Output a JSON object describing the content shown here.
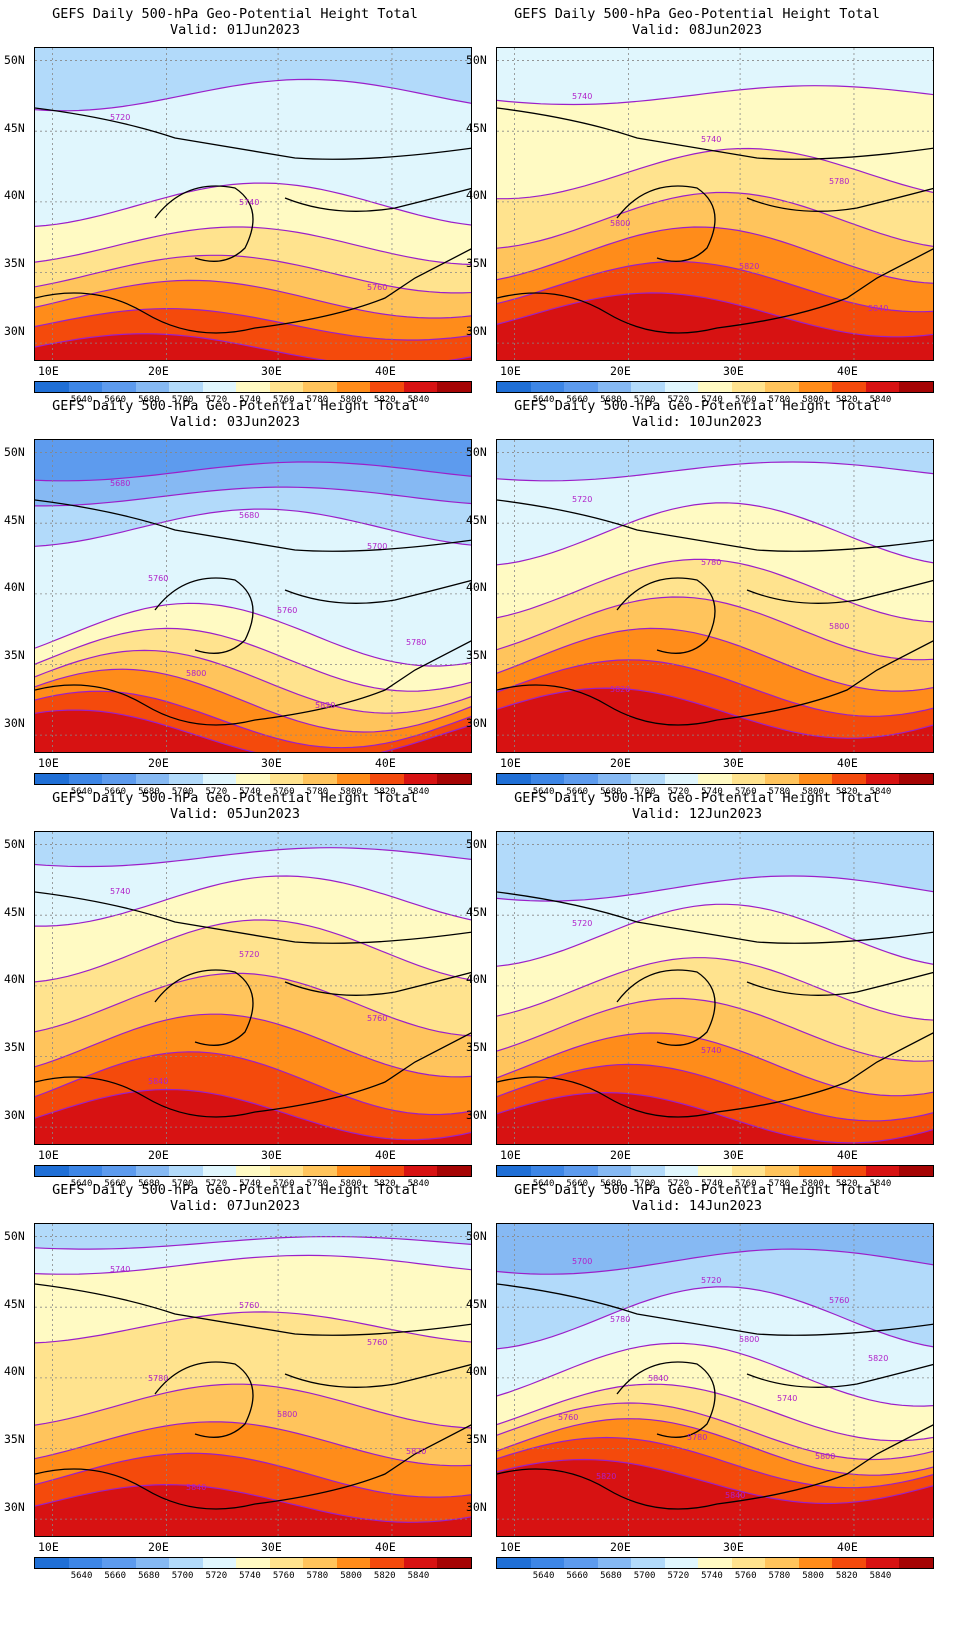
{
  "colorbar": {
    "labels": [
      "5640",
      "5660",
      "5680",
      "5700",
      "5720",
      "5740",
      "5760",
      "5780",
      "5800",
      "5820",
      "5840"
    ],
    "colors": [
      "#1f6fd6",
      "#3d86e6",
      "#5d9bee",
      "#86b9f3",
      "#b2dafa",
      "#e0f6fd",
      "#fffac3",
      "#ffe38e",
      "#ffc45c",
      "#ff8c1a",
      "#f44a0c",
      "#d71212",
      "#a50404"
    ]
  },
  "axes": {
    "lat_labels": [
      "50N",
      "45N",
      "40N",
      "35N",
      "30N"
    ],
    "lon_labels": [
      "10E",
      "20E",
      "30E",
      "40E"
    ]
  },
  "panels": [
    {
      "title": "GEFS Daily 500-hPa Geo-Potential Height Total",
      "valid": "Valid: 01Jun2023",
      "base": 4,
      "bands": [
        {
          "color": 5,
          "base": 0.15,
          "amp": 0.05,
          "phase": 0.4
        },
        {
          "color": 6,
          "base": 0.5,
          "amp": 0.07,
          "phase": 0.6
        },
        {
          "color": 7,
          "base": 0.63,
          "amp": 0.06,
          "phase": 0.7
        },
        {
          "color": 8,
          "base": 0.72,
          "amp": 0.06,
          "phase": 0.8
        },
        {
          "color": 9,
          "base": 0.8,
          "amp": 0.06,
          "phase": 0.9
        },
        {
          "color": 10,
          "base": 0.88,
          "amp": 0.05,
          "phase": 1.0
        },
        {
          "color": 11,
          "base": 0.96,
          "amp": 0.05,
          "phase": 1.1
        }
      ],
      "contour_labels": [
        "5720",
        "5740",
        "5760"
      ]
    },
    {
      "title": "GEFS Daily 500-hPa Geo-Potential Height Total",
      "valid": "Valid: 08Jun2023",
      "base": 5,
      "bands": [
        {
          "color": 6,
          "base": 0.15,
          "amp": 0.03,
          "phase": 0.2
        },
        {
          "color": 7,
          "base": 0.4,
          "amp": 0.08,
          "phase": 0.5
        },
        {
          "color": 8,
          "base": 0.55,
          "amp": 0.09,
          "phase": 0.6
        },
        {
          "color": 9,
          "base": 0.66,
          "amp": 0.09,
          "phase": 0.7
        },
        {
          "color": 10,
          "base": 0.76,
          "amp": 0.08,
          "phase": 0.8
        },
        {
          "color": 11,
          "base": 0.85,
          "amp": 0.07,
          "phase": 0.9
        }
      ],
      "contour_labels": [
        "5740",
        "5740",
        "5780",
        "5800",
        "5820",
        "5840"
      ]
    },
    {
      "title": "GEFS Daily 500-hPa Geo-Potential Height Total",
      "valid": "Valid: 03Jun2023",
      "base": 2,
      "bands": [
        {
          "color": 3,
          "base": 0.1,
          "amp": 0.03,
          "phase": 0.4
        },
        {
          "color": 4,
          "base": 0.18,
          "amp": 0.03,
          "phase": 0.5
        },
        {
          "color": 5,
          "base": 0.28,
          "amp": 0.06,
          "phase": 0.6
        },
        {
          "color": 6,
          "base": 0.62,
          "amp": 0.1,
          "phase": 0.9
        },
        {
          "color": 7,
          "base": 0.7,
          "amp": 0.1,
          "phase": 1.0
        },
        {
          "color": 8,
          "base": 0.77,
          "amp": 0.1,
          "phase": 1.1
        },
        {
          "color": 9,
          "base": 0.83,
          "amp": 0.1,
          "phase": 1.2
        },
        {
          "color": 10,
          "base": 0.89,
          "amp": 0.09,
          "phase": 1.3
        },
        {
          "color": 11,
          "base": 0.94,
          "amp": 0.08,
          "phase": 1.4
        }
      ],
      "contour_labels": [
        "5680",
        "5680",
        "5700",
        "5760",
        "5760",
        "5780",
        "5800",
        "5820"
      ]
    },
    {
      "title": "GEFS Daily 500-hPa Geo-Potential Height Total",
      "valid": "Valid: 10Jun2023",
      "base": 4,
      "bands": [
        {
          "color": 5,
          "base": 0.1,
          "amp": 0.03,
          "phase": 0.3
        },
        {
          "color": 6,
          "base": 0.3,
          "amp": 0.1,
          "phase": 0.6
        },
        {
          "color": 7,
          "base": 0.48,
          "amp": 0.1,
          "phase": 0.7
        },
        {
          "color": 8,
          "base": 0.6,
          "amp": 0.1,
          "phase": 0.8
        },
        {
          "color": 9,
          "base": 0.7,
          "amp": 0.1,
          "phase": 0.9
        },
        {
          "color": 10,
          "base": 0.79,
          "amp": 0.09,
          "phase": 1.0
        },
        {
          "color": 11,
          "base": 0.87,
          "amp": 0.08,
          "phase": 1.1
        }
      ],
      "contour_labels": [
        "5720",
        "5780",
        "5800",
        "5820"
      ]
    },
    {
      "title": "GEFS Daily 500-hPa Geo-Potential Height Total",
      "valid": "Valid: 05Jun2023",
      "base": 4,
      "bands": [
        {
          "color": 5,
          "base": 0.08,
          "amp": 0.03,
          "phase": 0.3
        },
        {
          "color": 6,
          "base": 0.22,
          "amp": 0.08,
          "phase": 0.5
        },
        {
          "color": 7,
          "base": 0.38,
          "amp": 0.1,
          "phase": 0.6
        },
        {
          "color": 8,
          "base": 0.55,
          "amp": 0.1,
          "phase": 0.7
        },
        {
          "color": 9,
          "base": 0.68,
          "amp": 0.1,
          "phase": 0.8
        },
        {
          "color": 10,
          "base": 0.8,
          "amp": 0.1,
          "phase": 0.9
        },
        {
          "color": 11,
          "base": 0.9,
          "amp": 0.08,
          "phase": 1.0
        }
      ],
      "contour_labels": [
        "5740",
        "5720",
        "5760",
        "5840"
      ]
    },
    {
      "title": "GEFS Daily 500-hPa Geo-Potential Height Total",
      "valid": "Valid: 12Jun2023",
      "base": 4,
      "bands": [
        {
          "color": 5,
          "base": 0.18,
          "amp": 0.04,
          "phase": 0.3
        },
        {
          "color": 6,
          "base": 0.33,
          "amp": 0.1,
          "phase": 0.6
        },
        {
          "color": 7,
          "base": 0.5,
          "amp": 0.1,
          "phase": 0.7
        },
        {
          "color": 8,
          "base": 0.63,
          "amp": 0.1,
          "phase": 0.8
        },
        {
          "color": 9,
          "base": 0.74,
          "amp": 0.1,
          "phase": 0.9
        },
        {
          "color": 10,
          "base": 0.83,
          "amp": 0.09,
          "phase": 1.0
        },
        {
          "color": 11,
          "base": 0.91,
          "amp": 0.08,
          "phase": 1.1
        }
      ],
      "contour_labels": [
        "5720",
        "5740"
      ]
    },
    {
      "title": "GEFS Daily 500-hPa Geo-Potential Height Total",
      "valid": "Valid: 07Jun2023",
      "base": 4,
      "bands": [
        {
          "color": 5,
          "base": 0.06,
          "amp": 0.02,
          "phase": 0.3
        },
        {
          "color": 6,
          "base": 0.13,
          "amp": 0.03,
          "phase": 0.4
        },
        {
          "color": 7,
          "base": 0.33,
          "amp": 0.05,
          "phase": 0.6
        },
        {
          "color": 8,
          "base": 0.58,
          "amp": 0.07,
          "phase": 0.7
        },
        {
          "color": 9,
          "base": 0.7,
          "amp": 0.07,
          "phase": 0.8
        },
        {
          "color": 10,
          "base": 0.8,
          "amp": 0.07,
          "phase": 0.9
        },
        {
          "color": 11,
          "base": 0.89,
          "amp": 0.06,
          "phase": 1.0
        }
      ],
      "contour_labels": [
        "5740",
        "5760",
        "5760",
        "5780",
        "5800",
        "5820",
        "5840"
      ]
    },
    {
      "title": "GEFS Daily 500-hPa Geo-Potential Height Total",
      "valid": "Valid: 14Jun2023",
      "base": 3,
      "bands": [
        {
          "color": 4,
          "base": 0.12,
          "amp": 0.04,
          "phase": 0.3
        },
        {
          "color": 5,
          "base": 0.3,
          "amp": 0.1,
          "phase": 0.6
        },
        {
          "color": 6,
          "base": 0.48,
          "amp": 0.1,
          "phase": 0.8
        },
        {
          "color": 7,
          "base": 0.6,
          "amp": 0.09,
          "phase": 0.9
        },
        {
          "color": 8,
          "base": 0.66,
          "amp": 0.09,
          "phase": 1.0
        },
        {
          "color": 9,
          "base": 0.71,
          "amp": 0.09,
          "phase": 1.0
        },
        {
          "color": 10,
          "base": 0.76,
          "amp": 0.08,
          "phase": 1.1
        },
        {
          "color": 11,
          "base": 0.82,
          "amp": 0.07,
          "phase": 1.2
        }
      ],
      "contour_labels": [
        "5700",
        "5720",
        "5760",
        "5780",
        "5800",
        "5820",
        "5840",
        "5740",
        "5760",
        "5780",
        "5800",
        "5820",
        "5840"
      ]
    }
  ]
}
